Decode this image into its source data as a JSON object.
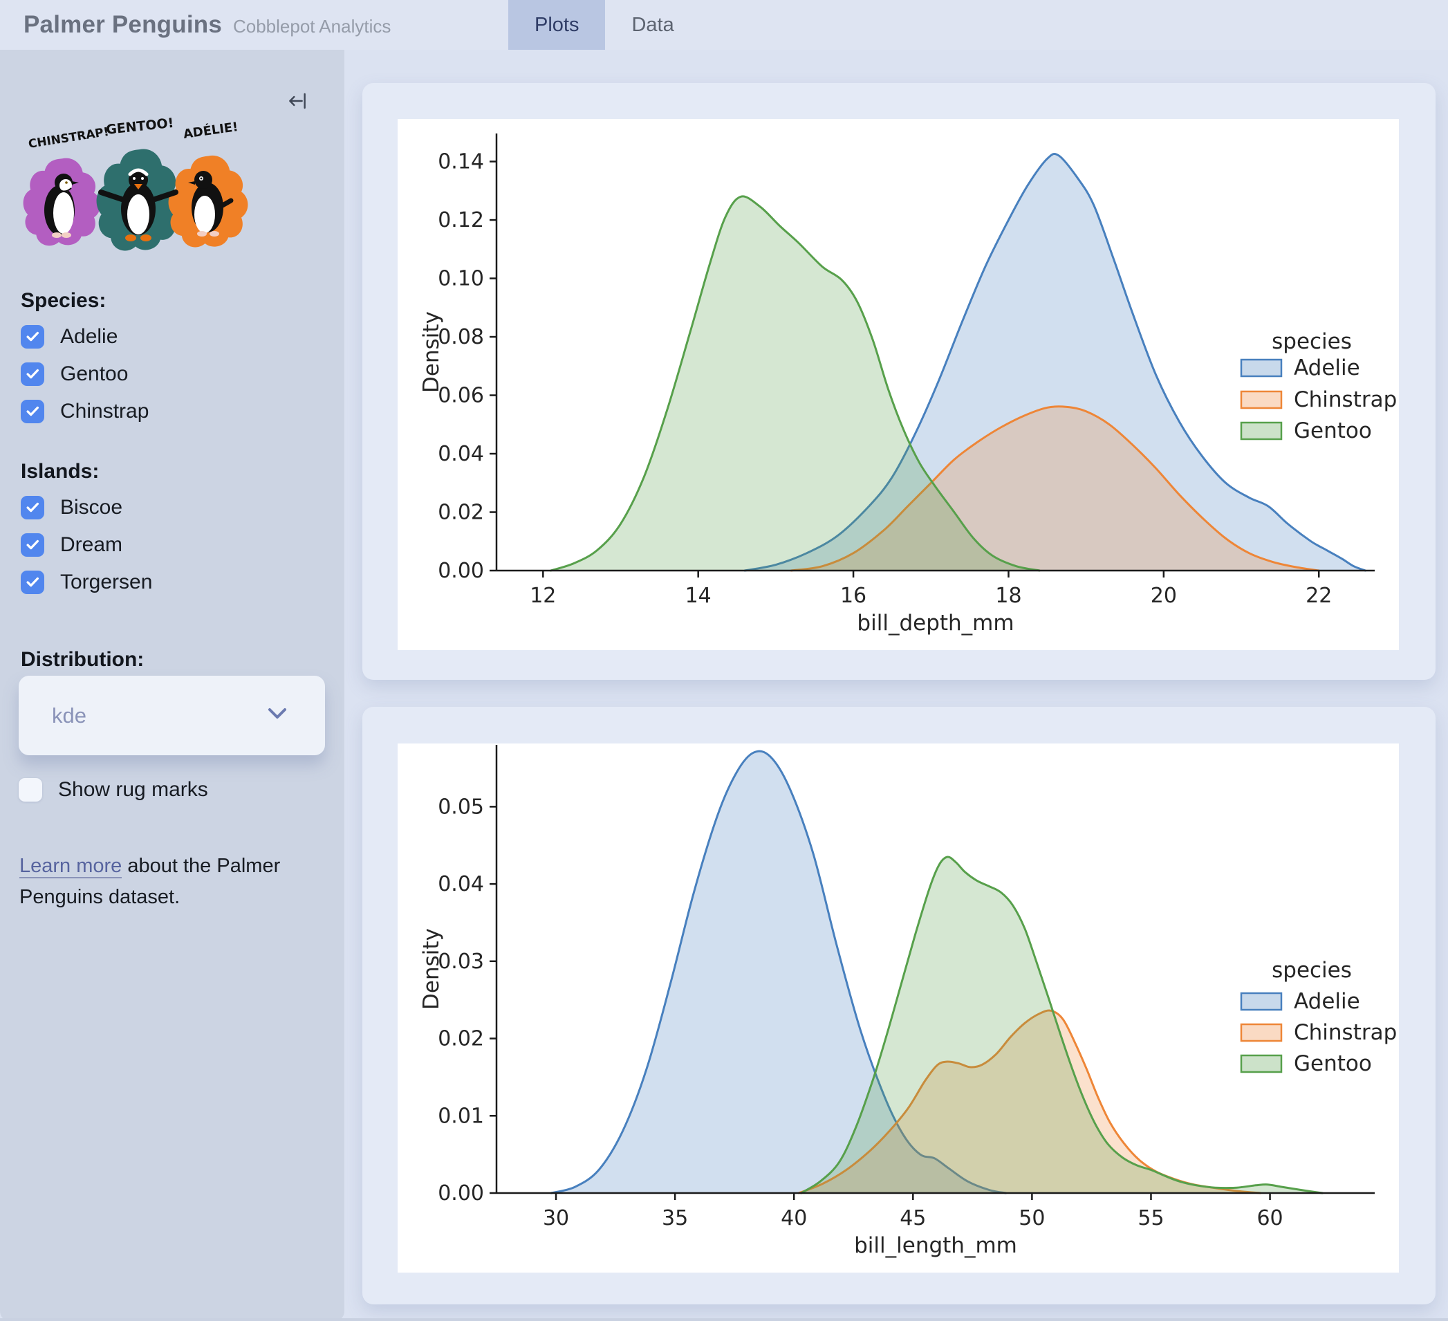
{
  "header": {
    "title": "Palmer Penguins",
    "subtitle": "Cobblepot Analytics",
    "tabs": [
      {
        "label": "Plots",
        "active": true
      },
      {
        "label": "Data",
        "active": false
      }
    ]
  },
  "sidebar": {
    "artwork": {
      "labels": [
        "CHINSTRAP!",
        "GENTOO!",
        "ADÉLIE!"
      ],
      "splat_colors": [
        "#b35ec1",
        "#2e6f6d",
        "#f08026"
      ]
    },
    "species": {
      "label": "Species:",
      "options": [
        {
          "label": "Adelie",
          "checked": true
        },
        {
          "label": "Gentoo",
          "checked": true
        },
        {
          "label": "Chinstrap",
          "checked": true
        }
      ]
    },
    "islands": {
      "label": "Islands:",
      "options": [
        {
          "label": "Biscoe",
          "checked": true
        },
        {
          "label": "Dream",
          "checked": true
        },
        {
          "label": "Torgersen",
          "checked": true
        }
      ]
    },
    "distribution": {
      "label": "Distribution:",
      "value": "kde"
    },
    "rug": {
      "label": "Show rug marks",
      "checked": false
    },
    "footer": {
      "link_text": "Learn more",
      "text_after": " about the Palmer Penguins dataset."
    }
  },
  "colors": {
    "accent_checkbox": "#5186ee",
    "active_tab_bg": "#b9c6e2",
    "sidebar_bg": "#ccd4e3",
    "card_bg": "#e4eaf6",
    "adelie": "#4880be",
    "chinstrap": "#ee8637",
    "gentoo": "#57a04b"
  },
  "chart_data": [
    {
      "type": "area",
      "subtype": "kde",
      "xlabel": "bill_depth_mm",
      "ylabel": "Density",
      "xlim": [
        11.4,
        22.72
      ],
      "ylim": [
        0,
        0.1496
      ],
      "xticks": [
        12,
        14,
        16,
        18,
        20,
        22
      ],
      "yticks": [
        0.0,
        0.02,
        0.04,
        0.06,
        0.08,
        0.1,
        0.12,
        0.14
      ],
      "grid": false,
      "legend": {
        "title": "species",
        "position": "right",
        "entries": [
          "Adelie",
          "Chinstrap",
          "Gentoo"
        ]
      },
      "series": [
        {
          "name": "Adelie",
          "color": "#4880be",
          "points": [
            [
              14.6,
              0
            ],
            [
              15.0,
              0.002
            ],
            [
              15.4,
              0.006
            ],
            [
              15.8,
              0.012
            ],
            [
              16.2,
              0.022
            ],
            [
              16.5,
              0.032
            ],
            [
              16.8,
              0.047
            ],
            [
              17.1,
              0.065
            ],
            [
              17.4,
              0.085
            ],
            [
              17.7,
              0.104
            ],
            [
              18.0,
              0.12
            ],
            [
              18.25,
              0.132
            ],
            [
              18.5,
              0.141
            ],
            [
              18.65,
              0.142
            ],
            [
              18.9,
              0.134
            ],
            [
              19.1,
              0.125
            ],
            [
              19.35,
              0.107
            ],
            [
              19.6,
              0.088
            ],
            [
              19.9,
              0.067
            ],
            [
              20.2,
              0.051
            ],
            [
              20.5,
              0.039
            ],
            [
              20.8,
              0.03
            ],
            [
              21.1,
              0.025
            ],
            [
              21.35,
              0.022
            ],
            [
              21.6,
              0.016
            ],
            [
              21.9,
              0.01
            ],
            [
              22.1,
              0.007
            ],
            [
              22.3,
              0.004
            ],
            [
              22.45,
              0.0015
            ],
            [
              22.6,
              0
            ]
          ]
        },
        {
          "name": "Chinstrap",
          "color": "#ee8637",
          "points": [
            [
              15.2,
              0
            ],
            [
              15.6,
              0.0015
            ],
            [
              16.0,
              0.006
            ],
            [
              16.4,
              0.014
            ],
            [
              16.7,
              0.022
            ],
            [
              17.0,
              0.03
            ],
            [
              17.3,
              0.038
            ],
            [
              17.6,
              0.044
            ],
            [
              17.9,
              0.049
            ],
            [
              18.2,
              0.053
            ],
            [
              18.5,
              0.0558
            ],
            [
              18.75,
              0.056
            ],
            [
              19.0,
              0.0545
            ],
            [
              19.3,
              0.05
            ],
            [
              19.6,
              0.043
            ],
            [
              19.9,
              0.035
            ],
            [
              20.2,
              0.026
            ],
            [
              20.5,
              0.018
            ],
            [
              20.8,
              0.011
            ],
            [
              21.1,
              0.006
            ],
            [
              21.4,
              0.003
            ],
            [
              21.7,
              0.0012
            ],
            [
              22.0,
              0
            ]
          ]
        },
        {
          "name": "Gentoo",
          "color": "#57a04b",
          "points": [
            [
              12.1,
              0
            ],
            [
              12.4,
              0.0025
            ],
            [
              12.7,
              0.007
            ],
            [
              13.0,
              0.016
            ],
            [
              13.3,
              0.032
            ],
            [
              13.6,
              0.055
            ],
            [
              13.9,
              0.082
            ],
            [
              14.15,
              0.105
            ],
            [
              14.35,
              0.121
            ],
            [
              14.55,
              0.128
            ],
            [
              14.8,
              0.1245
            ],
            [
              15.05,
              0.118
            ],
            [
              15.3,
              0.112
            ],
            [
              15.6,
              0.104
            ],
            [
              15.85,
              0.0995
            ],
            [
              16.05,
              0.092
            ],
            [
              16.25,
              0.079
            ],
            [
              16.45,
              0.062
            ],
            [
              16.65,
              0.048
            ],
            [
              16.85,
              0.037
            ],
            [
              17.05,
              0.029
            ],
            [
              17.3,
              0.02
            ],
            [
              17.55,
              0.011
            ],
            [
              17.8,
              0.005
            ],
            [
              18.1,
              0.0015
            ],
            [
              18.4,
              0
            ]
          ]
        }
      ]
    },
    {
      "type": "area",
      "subtype": "kde",
      "xlabel": "bill_length_mm",
      "ylabel": "Density",
      "xlim": [
        27.5,
        64.4
      ],
      "ylim": [
        0,
        0.058
      ],
      "xticks": [
        30,
        35,
        40,
        45,
        50,
        55,
        60
      ],
      "yticks": [
        0.0,
        0.01,
        0.02,
        0.03,
        0.04,
        0.05
      ],
      "grid": false,
      "legend": {
        "title": "species",
        "position": "right",
        "entries": [
          "Adelie",
          "Chinstrap",
          "Gentoo"
        ]
      },
      "series": [
        {
          "name": "Adelie",
          "color": "#4880be",
          "points": [
            [
              29.8,
              0
            ],
            [
              30.8,
              0.0008
            ],
            [
              31.8,
              0.003
            ],
            [
              32.8,
              0.008
            ],
            [
              33.8,
              0.016
            ],
            [
              34.8,
              0.027
            ],
            [
              35.8,
              0.039
            ],
            [
              36.8,
              0.049
            ],
            [
              37.6,
              0.0545
            ],
            [
              38.3,
              0.057
            ],
            [
              39.0,
              0.0565
            ],
            [
              39.8,
              0.0525
            ],
            [
              40.8,
              0.044
            ],
            [
              41.8,
              0.032
            ],
            [
              42.8,
              0.021
            ],
            [
              43.8,
              0.0125
            ],
            [
              44.6,
              0.0075
            ],
            [
              45.3,
              0.005
            ],
            [
              45.9,
              0.0045
            ],
            [
              46.5,
              0.0032
            ],
            [
              47.3,
              0.0015
            ],
            [
              48.2,
              0.0004
            ],
            [
              48.9,
              0
            ]
          ]
        },
        {
          "name": "Chinstrap",
          "color": "#ee8637",
          "points": [
            [
              40.2,
              0
            ],
            [
              41.2,
              0.0012
            ],
            [
              42.2,
              0.003
            ],
            [
              43.2,
              0.0055
            ],
            [
              44.0,
              0.008
            ],
            [
              44.8,
              0.011
            ],
            [
              45.5,
              0.0145
            ],
            [
              46.0,
              0.0165
            ],
            [
              46.4,
              0.017
            ],
            [
              46.9,
              0.0168
            ],
            [
              47.4,
              0.0163
            ],
            [
              47.9,
              0.0166
            ],
            [
              48.5,
              0.018
            ],
            [
              49.1,
              0.0202
            ],
            [
              49.7,
              0.022
            ],
            [
              50.3,
              0.0232
            ],
            [
              50.8,
              0.0236
            ],
            [
              51.3,
              0.0225
            ],
            [
              51.8,
              0.0195
            ],
            [
              52.3,
              0.016
            ],
            [
              52.8,
              0.0122
            ],
            [
              53.3,
              0.009
            ],
            [
              53.9,
              0.0063
            ],
            [
              54.5,
              0.0043
            ],
            [
              55.2,
              0.0028
            ],
            [
              56.0,
              0.0018
            ],
            [
              56.8,
              0.0011
            ],
            [
              57.8,
              0.0006
            ],
            [
              58.8,
              0.0002
            ],
            [
              59.6,
              0
            ]
          ]
        },
        {
          "name": "Gentoo",
          "color": "#57a04b",
          "points": [
            [
              40.3,
              0
            ],
            [
              41.1,
              0.0015
            ],
            [
              41.9,
              0.004
            ],
            [
              42.6,
              0.0085
            ],
            [
              43.3,
              0.0145
            ],
            [
              43.9,
              0.0205
            ],
            [
              44.5,
              0.027
            ],
            [
              45.1,
              0.0335
            ],
            [
              45.7,
              0.0395
            ],
            [
              46.1,
              0.0425
            ],
            [
              46.45,
              0.0435
            ],
            [
              46.8,
              0.0428
            ],
            [
              47.2,
              0.0415
            ],
            [
              47.7,
              0.0404
            ],
            [
              48.2,
              0.0397
            ],
            [
              48.7,
              0.0389
            ],
            [
              49.2,
              0.0372
            ],
            [
              49.7,
              0.0342
            ],
            [
              50.2,
              0.0298
            ],
            [
              50.7,
              0.0252
            ],
            [
              51.2,
              0.0205
            ],
            [
              51.7,
              0.016
            ],
            [
              52.2,
              0.012
            ],
            [
              52.7,
              0.0087
            ],
            [
              53.2,
              0.0063
            ],
            [
              53.8,
              0.0046
            ],
            [
              54.4,
              0.0036
            ],
            [
              55.0,
              0.003
            ],
            [
              55.6,
              0.0022
            ],
            [
              56.2,
              0.0015
            ],
            [
              56.9,
              0.001
            ],
            [
              57.7,
              0.0007
            ],
            [
              58.6,
              0.0007
            ],
            [
              59.4,
              0.001
            ],
            [
              59.9,
              0.0011
            ],
            [
              60.5,
              0.0008
            ],
            [
              61.3,
              0.0004
            ],
            [
              62.2,
              0
            ]
          ]
        }
      ]
    }
  ]
}
